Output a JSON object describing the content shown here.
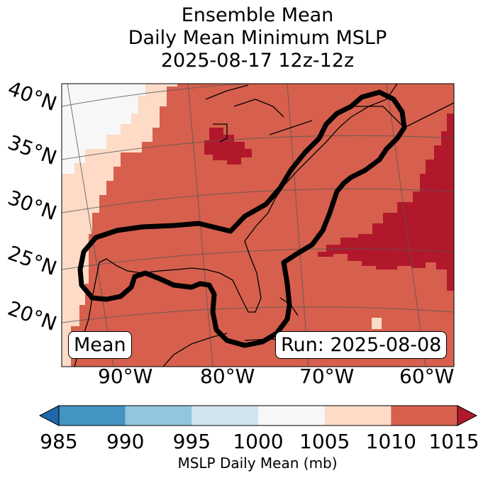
{
  "title": {
    "line1": "Ensemble Mean",
    "line2": "Daily Mean Minimum MSLP",
    "line3": "2025-08-17 12z-12z"
  },
  "map": {
    "lat_labels": [
      "40°N",
      "35°N",
      "30°N",
      "25°N",
      "20°N"
    ],
    "lon_labels": [
      "90°W",
      "80°W",
      "70°W",
      "60°W"
    ],
    "mean_label": "Mean",
    "run_label": "Run: 2025-08-08"
  },
  "chart_data": {
    "type": "heatmap",
    "title": "Ensemble Mean Daily Mean Minimum MSLP 2025-08-17 12z-12z",
    "variable": "MSLP Daily Mean (mb)",
    "region": {
      "lon_range": [
        -97,
        -58
      ],
      "lat_range": [
        15,
        42
      ]
    },
    "dominant_bin": "1010-1015",
    "colorbar": {
      "label": "MSLP Daily Mean (mb)",
      "ticks": [
        985,
        990,
        995,
        1000,
        1005,
        1010,
        1015
      ],
      "bins": [
        {
          "range": "<985",
          "color": "#2166ac"
        },
        {
          "range": "985-990",
          "color": "#4393c3"
        },
        {
          "range": "990-995",
          "color": "#92c5de"
        },
        {
          "range": "995-1000",
          "color": "#d1e5f0"
        },
        {
          "range": "1000-1005",
          "color": "#f7f7f7"
        },
        {
          "range": "1005-1010",
          "color": "#fddbc7"
        },
        {
          "range": "1010-1015",
          "color": "#d6604d"
        },
        {
          "range": ">1015",
          "color": "#b2182b"
        }
      ],
      "extend": "both"
    },
    "annotations": [
      "Mean",
      "Run: 2025-08-08"
    ],
    "contour": "black outline of probability region along US Gulf coast and Atlantic seaboard"
  }
}
